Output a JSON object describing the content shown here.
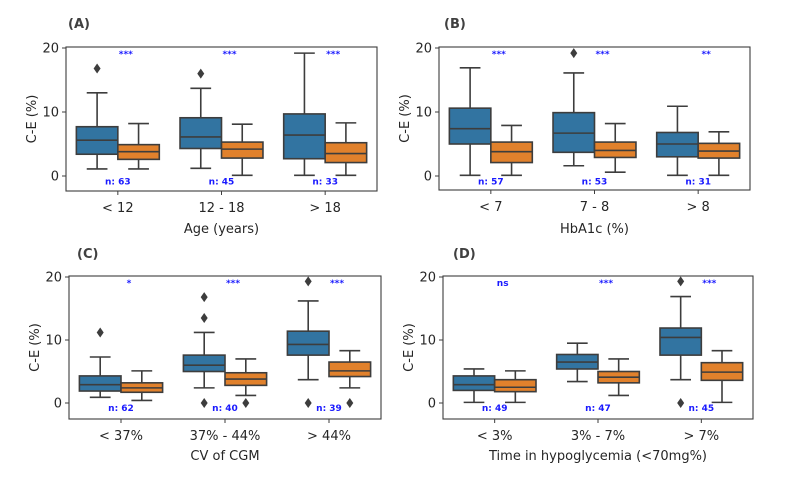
{
  "figure": {
    "box_colors": {
      "group1": "#3274a1",
      "group2": "#e1812c",
      "edge": "#3d3d3d",
      "annotation": "#1a1aff"
    }
  },
  "chart_data": [
    {
      "type": "box",
      "panel_label": "(A)",
      "xlabel": "Age (years)",
      "ylabel": "C-E (%)",
      "ylim": [
        -2.4,
        20.3
      ],
      "yticks": [
        0,
        10,
        20
      ],
      "categories": [
        "< 12",
        "12 - 18",
        "> 18"
      ],
      "significance": [
        "***",
        "***",
        "***"
      ],
      "n_labels": [
        "n: 63",
        "n: 45",
        "n: 33"
      ],
      "series": [
        {
          "name": "group1",
          "boxes": [
            {
              "whislo": 1.1,
              "q1": 3.4,
              "med": 5.6,
              "q3": 7.7,
              "whishi": 13.0,
              "fliers": [
                16.8
              ]
            },
            {
              "whislo": 1.2,
              "q1": 4.3,
              "med": 6.1,
              "q3": 9.1,
              "whishi": 13.7,
              "fliers": [
                16.0
              ]
            },
            {
              "whislo": 0.1,
              "q1": 2.7,
              "med": 6.4,
              "q3": 9.7,
              "whishi": 19.2,
              "fliers": []
            }
          ]
        },
        {
          "name": "group2",
          "boxes": [
            {
              "whislo": 1.1,
              "q1": 2.6,
              "med": 3.8,
              "q3": 4.9,
              "whishi": 8.2,
              "fliers": []
            },
            {
              "whislo": 0.1,
              "q1": 2.8,
              "med": 4.2,
              "q3": 5.3,
              "whishi": 8.1,
              "fliers": []
            },
            {
              "whislo": 0.1,
              "q1": 2.1,
              "med": 3.5,
              "q3": 5.2,
              "whishi": 8.3,
              "fliers": []
            }
          ]
        }
      ]
    },
    {
      "type": "box",
      "panel_label": "(B)",
      "xlabel": "HbA1c (%)",
      "ylabel": "C-E (%)",
      "ylim": [
        -2.4,
        20.3
      ],
      "yticks": [
        0,
        10,
        20
      ],
      "categories": [
        "< 7",
        "7 - 8",
        "> 8"
      ],
      "significance": [
        "***",
        "***",
        "**"
      ],
      "n_labels": [
        "n: 57",
        "n: 53",
        "n: 31"
      ],
      "series": [
        {
          "name": "group1",
          "boxes": [
            {
              "whislo": 0.1,
              "q1": 5.0,
              "med": 7.4,
              "q3": 10.6,
              "whishi": 16.9,
              "fliers": []
            },
            {
              "whislo": 1.6,
              "q1": 3.7,
              "med": 6.7,
              "q3": 9.9,
              "whishi": 16.1,
              "fliers": [
                19.2
              ]
            },
            {
              "whislo": 0.1,
              "q1": 3.0,
              "med": 5.0,
              "q3": 6.8,
              "whishi": 10.9,
              "fliers": []
            }
          ]
        },
        {
          "name": "group2",
          "boxes": [
            {
              "whislo": 0.1,
              "q1": 2.1,
              "med": 3.8,
              "q3": 5.3,
              "whishi": 7.9,
              "fliers": []
            },
            {
              "whislo": 0.6,
              "q1": 2.9,
              "med": 4.0,
              "q3": 5.3,
              "whishi": 8.2,
              "fliers": []
            },
            {
              "whislo": 0.1,
              "q1": 2.8,
              "med": 3.9,
              "q3": 5.1,
              "whishi": 6.9,
              "fliers": []
            }
          ]
        }
      ]
    },
    {
      "type": "box",
      "panel_label": "(C)",
      "xlabel": "CV of CGM",
      "ylabel": "C-E (%)",
      "ylim": [
        -2.5,
        20.3
      ],
      "yticks": [
        0,
        10,
        20
      ],
      "categories": [
        "< 37%",
        "37% - 44%",
        "> 44%"
      ],
      "significance": [
        "*",
        "***",
        "***"
      ],
      "n_labels": [
        "n: 62",
        "n: 40",
        "n: 39"
      ],
      "series": [
        {
          "name": "group1",
          "boxes": [
            {
              "whislo": 0.9,
              "q1": 1.9,
              "med": 2.9,
              "q3": 4.3,
              "whishi": 7.3,
              "fliers": [
                11.2
              ]
            },
            {
              "whislo": 2.4,
              "q1": 5.0,
              "med": 6.0,
              "q3": 7.6,
              "whishi": 11.2,
              "fliers": [
                16.8,
                13.5,
                0.0
              ]
            },
            {
              "whislo": 3.7,
              "q1": 7.6,
              "med": 9.3,
              "q3": 11.4,
              "whishi": 16.2,
              "fliers": [
                19.3,
                0.0
              ]
            }
          ]
        },
        {
          "name": "group2",
          "boxes": [
            {
              "whislo": 0.4,
              "q1": 1.7,
              "med": 2.4,
              "q3": 3.2,
              "whishi": 5.1,
              "fliers": []
            },
            {
              "whislo": 1.2,
              "q1": 2.8,
              "med": 3.8,
              "q3": 4.8,
              "whishi": 7.0,
              "fliers": [
                0.0
              ]
            },
            {
              "whislo": 2.4,
              "q1": 4.2,
              "med": 5.1,
              "q3": 6.5,
              "whishi": 8.3,
              "fliers": [
                0.0
              ]
            }
          ]
        }
      ]
    },
    {
      "type": "box",
      "panel_label": "(D)",
      "xlabel": "Time in hypoglycemia (<70mg%)",
      "ylabel": "C-E (%)",
      "ylim": [
        -2.5,
        20.3
      ],
      "yticks": [
        0,
        10,
        20
      ],
      "categories": [
        "< 3%",
        "3% - 7%",
        "> 7%"
      ],
      "significance": [
        "ns",
        "***",
        "***"
      ],
      "n_labels": [
        "n: 49",
        "n: 47",
        "n: 45"
      ],
      "series": [
        {
          "name": "group1",
          "boxes": [
            {
              "whislo": 0.1,
              "q1": 2.0,
              "med": 2.9,
              "q3": 4.3,
              "whishi": 5.4,
              "fliers": []
            },
            {
              "whislo": 3.4,
              "q1": 5.4,
              "med": 6.5,
              "q3": 7.7,
              "whishi": 9.5,
              "fliers": []
            },
            {
              "whislo": 3.7,
              "q1": 7.6,
              "med": 10.4,
              "q3": 11.9,
              "whishi": 16.9,
              "fliers": [
                19.3,
                0.0
              ]
            }
          ]
        },
        {
          "name": "group2",
          "boxes": [
            {
              "whislo": 0.1,
              "q1": 1.8,
              "med": 2.5,
              "q3": 3.7,
              "whishi": 5.1,
              "fliers": []
            },
            {
              "whislo": 1.2,
              "q1": 3.2,
              "med": 4.1,
              "q3": 5.0,
              "whishi": 7.0,
              "fliers": []
            },
            {
              "whislo": 0.1,
              "q1": 3.6,
              "med": 4.9,
              "q3": 6.4,
              "whishi": 8.3,
              "fliers": []
            }
          ]
        }
      ]
    }
  ]
}
